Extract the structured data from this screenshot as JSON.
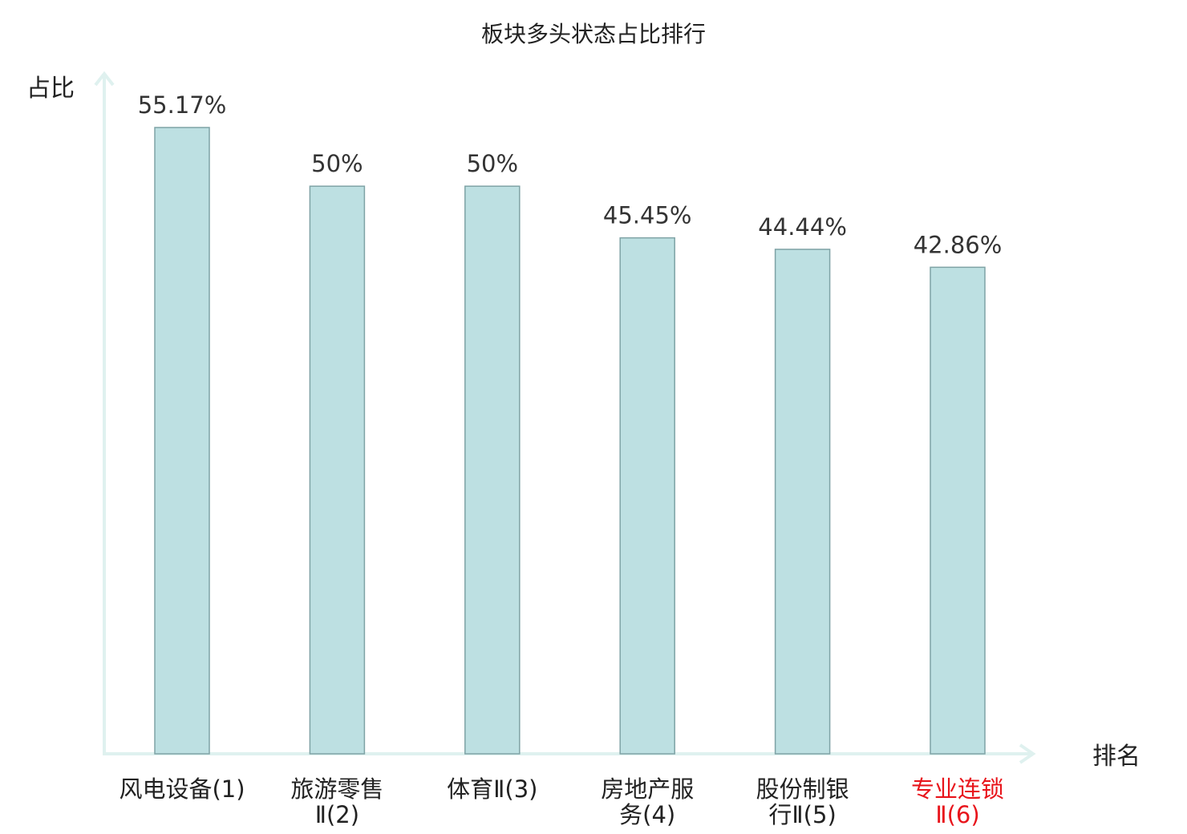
{
  "colors": {
    "bar_fill": "#bde0e2",
    "bar_stroke": "#7fa3a6",
    "axis": "#dff1ef",
    "text": "#222222",
    "highlight": "#e8141b",
    "index_text": "#444444"
  },
  "chart_data": {
    "type": "bar",
    "title": "板块多头状态占比排行",
    "ylabel": "占比",
    "xlabel": "排名",
    "ylim": [
      0,
      60
    ],
    "grid": false,
    "categories": [
      {
        "lines": [
          "风电设备(1)"
        ],
        "highlight": false
      },
      {
        "lines": [
          "旅游零售",
          "Ⅱ(2)"
        ],
        "highlight": false
      },
      {
        "lines": [
          "体育Ⅱ(3)"
        ],
        "highlight": false
      },
      {
        "lines": [
          "房地产服",
          "务(4)"
        ],
        "highlight": false
      },
      {
        "lines": [
          "股份制银",
          "行Ⅱ(5)"
        ],
        "highlight": false
      },
      {
        "lines": [
          "专业连锁",
          "Ⅱ(6)"
        ],
        "highlight": true
      }
    ],
    "values": [
      55.17,
      50,
      50,
      45.45,
      44.44,
      42.86
    ],
    "value_labels": [
      "55.17%",
      "50%",
      "50%",
      "45.45%",
      "44.44%",
      "42.86%"
    ]
  }
}
